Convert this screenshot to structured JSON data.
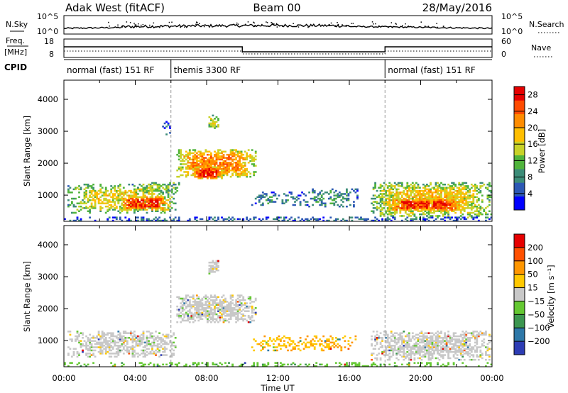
{
  "header": {
    "station": "Adak West (fitACF)",
    "beam": "Beam 00",
    "date": "28/May/2016"
  },
  "params": {
    "nsky_label": "N.Sky",
    "nsearch_label": "N.Search",
    "freq_label_1": "Freq.",
    "freq_label_2": "[MHz]",
    "nave_label": "Nave",
    "cpid_label": "CPID",
    "left_ticks_top": [
      "10^5",
      "10^0"
    ],
    "right_ticks_top": [
      "10^5",
      "10^0"
    ],
    "freq_ticks": [
      "18",
      "8"
    ],
    "nave_ticks": [
      "60",
      "0"
    ]
  },
  "cpid_segments": [
    {
      "label": "normal (fast) 151 RF",
      "start_h": 0,
      "end_h": 6
    },
    {
      "label": "themis 3300 RF",
      "start_h": 6,
      "end_h": 18
    },
    {
      "label": "normal (fast) 151 RF",
      "start_h": 18,
      "end_h": 24
    }
  ],
  "chart_data": [
    {
      "type": "heatmap",
      "name": "power",
      "xlabel": "Time UT",
      "ylabel": "Slant Range [km]",
      "xlim": [
        0,
        24
      ],
      "ylim": [
        180,
        4600
      ],
      "xticks": [
        "00:00",
        "04:00",
        "08:00",
        "12:00",
        "16:00",
        "20:00",
        "00:00"
      ],
      "yticks": [
        1000,
        2000,
        3000,
        4000
      ],
      "colorbar": {
        "label": "Power [dB]",
        "ticks": [
          4,
          8,
          12,
          16,
          20,
          24,
          28
        ],
        "range": [
          0,
          30
        ],
        "colors": [
          "#0000ff",
          "#2c58b4",
          "#3c8c78",
          "#50b43c",
          "#c8d228",
          "#ffbe00",
          "#ff8c00",
          "#ff4b00",
          "#e60000"
        ]
      },
      "regions": [
        {
          "t0": 0.2,
          "t1": 6.3,
          "r0": 420,
          "r1": 1350,
          "level": 0.55,
          "density": 0.55
        },
        {
          "t0": 3.0,
          "t1": 6.0,
          "r0": 520,
          "r1": 980,
          "level": 0.85,
          "density": 0.85
        },
        {
          "t0": 4.0,
          "t1": 6.5,
          "r0": 1050,
          "r1": 1420,
          "level": 0.45,
          "density": 0.6
        },
        {
          "t0": 6.3,
          "t1": 10.8,
          "r0": 1550,
          "r1": 2450,
          "level": 0.75,
          "density": 0.8
        },
        {
          "t0": 7.2,
          "t1": 9.0,
          "r0": 1500,
          "r1": 1900,
          "level": 0.92,
          "density": 0.9
        },
        {
          "t0": 10.5,
          "t1": 13.5,
          "r0": 650,
          "r1": 1100,
          "level": 0.25,
          "density": 0.35
        },
        {
          "t0": 13.5,
          "t1": 16.5,
          "r0": 600,
          "r1": 1200,
          "level": 0.3,
          "density": 0.4
        },
        {
          "t0": 17.2,
          "t1": 24.0,
          "r0": 300,
          "r1": 1400,
          "level": 0.6,
          "density": 0.75
        },
        {
          "t0": 18.0,
          "t1": 22.5,
          "r0": 500,
          "r1": 900,
          "level": 0.88,
          "density": 0.85
        },
        {
          "t0": 8.1,
          "t1": 8.7,
          "r0": 3100,
          "r1": 3500,
          "level": 0.55,
          "density": 0.8
        },
        {
          "t0": 5.5,
          "t1": 6.0,
          "r0": 2900,
          "r1": 3300,
          "level": 0.2,
          "density": 0.35
        },
        {
          "t0": 0.0,
          "t1": 24.0,
          "r0": 180,
          "r1": 320,
          "level": 0.2,
          "density": 0.4
        }
      ]
    },
    {
      "type": "heatmap",
      "name": "velocity",
      "xlabel": "Time UT",
      "ylabel": "Slant Range [km]",
      "xlim": [
        0,
        24
      ],
      "ylim": [
        180,
        4600
      ],
      "xticks": [
        "00:00",
        "04:00",
        "08:00",
        "12:00",
        "16:00",
        "20:00",
        "00:00"
      ],
      "yticks": [
        1000,
        2000,
        3000,
        4000
      ],
      "colorbar": {
        "label": "Velocity [m s⁻¹]",
        "ticks": [
          "200",
          "100",
          "50",
          "15",
          "−15",
          "−50",
          "−100",
          "−200"
        ],
        "colors": [
          "#2d3cb4",
          "#2e78a8",
          "#3c9650",
          "#64c832",
          "#c8c8c8",
          "#ffc800",
          "#ff9600",
          "#ff5000",
          "#e60000"
        ]
      },
      "regions": [
        {
          "t0": 0.2,
          "t1": 6.3,
          "r0": 480,
          "r1": 1300,
          "level": 0.5,
          "density": 0.6
        },
        {
          "t0": 6.3,
          "t1": 10.8,
          "r0": 1550,
          "r1": 2450,
          "level": 0.5,
          "density": 0.75
        },
        {
          "t0": 17.2,
          "t1": 24.0,
          "r0": 400,
          "r1": 1300,
          "level": 0.5,
          "density": 0.7
        },
        {
          "t0": 8.1,
          "t1": 8.7,
          "r0": 3100,
          "r1": 3500,
          "level": 0.5,
          "density": 0.8
        },
        {
          "t0": 10.5,
          "t1": 16.5,
          "r0": 650,
          "r1": 1150,
          "level": 0.65,
          "density": 0.3
        },
        {
          "t0": 0.0,
          "t1": 24.0,
          "r0": 180,
          "r1": 320,
          "level": 0.38,
          "density": 0.35
        }
      ]
    }
  ]
}
